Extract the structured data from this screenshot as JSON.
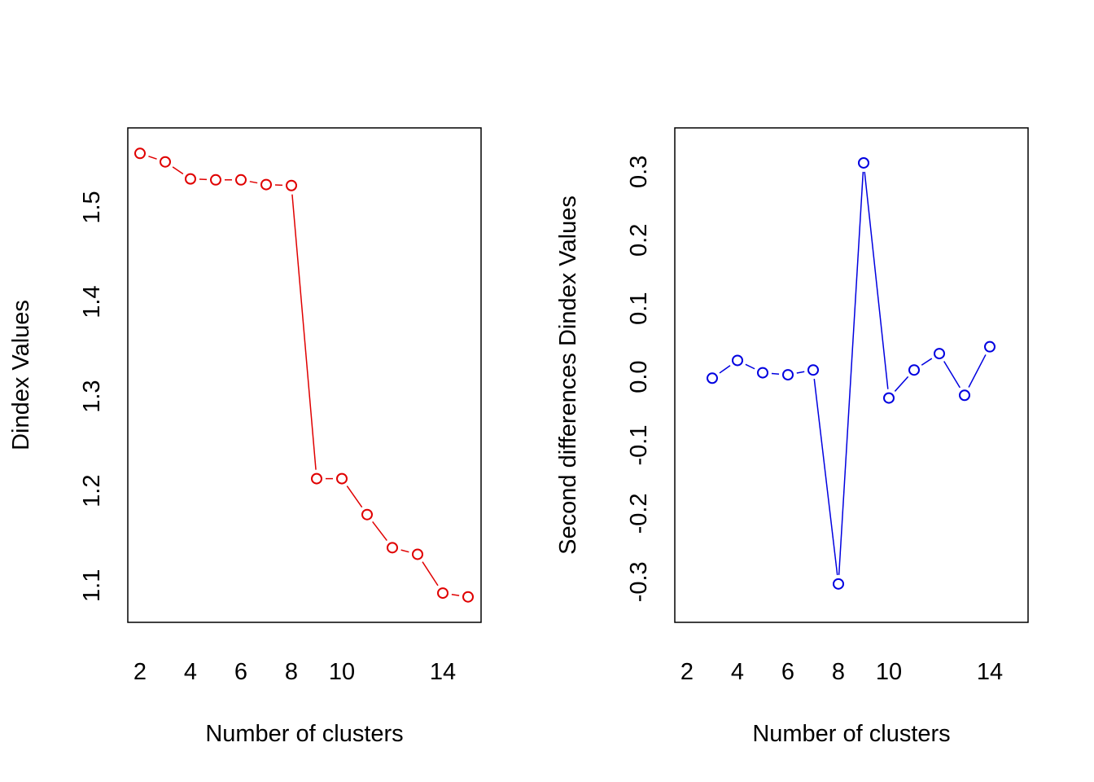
{
  "chart_data": [
    {
      "type": "line",
      "color": "#e00000",
      "marker": "open-circle",
      "xlabel": "Number of clusters",
      "ylabel": "Dindex Values",
      "xlim": [
        2,
        15
      ],
      "ylim": [
        1.08,
        1.565
      ],
      "xticks": [
        2,
        4,
        6,
        8,
        10,
        14
      ],
      "yticks": [
        1.1,
        1.2,
        1.3,
        1.4,
        1.5
      ],
      "grid": false,
      "x": [
        2,
        3,
        4,
        5,
        6,
        7,
        8,
        9,
        10,
        11,
        12,
        13,
        14,
        15
      ],
      "y": [
        1.557,
        1.548,
        1.53,
        1.529,
        1.529,
        1.524,
        1.523,
        1.213,
        1.213,
        1.175,
        1.14,
        1.133,
        1.092,
        1.088
      ]
    },
    {
      "type": "line",
      "color": "#0000e0",
      "marker": "open-circle",
      "xlabel": "Number of clusters",
      "ylabel": "Second differences Dindex Values",
      "xlim": [
        2,
        15
      ],
      "ylim": [
        -0.333,
        0.338
      ],
      "xticks": [
        2,
        4,
        6,
        8,
        10,
        14
      ],
      "yticks": [
        -0.3,
        -0.2,
        -0.1,
        0.0,
        0.1,
        0.2,
        0.3
      ],
      "grid": false,
      "x": [
        3,
        4,
        5,
        6,
        7,
        8,
        9,
        10,
        11,
        12,
        13,
        14
      ],
      "y": [
        -0.002,
        0.024,
        0.006,
        0.003,
        0.01,
        -0.303,
        0.313,
        -0.031,
        0.01,
        0.034,
        -0.027,
        0.044
      ]
    }
  ]
}
